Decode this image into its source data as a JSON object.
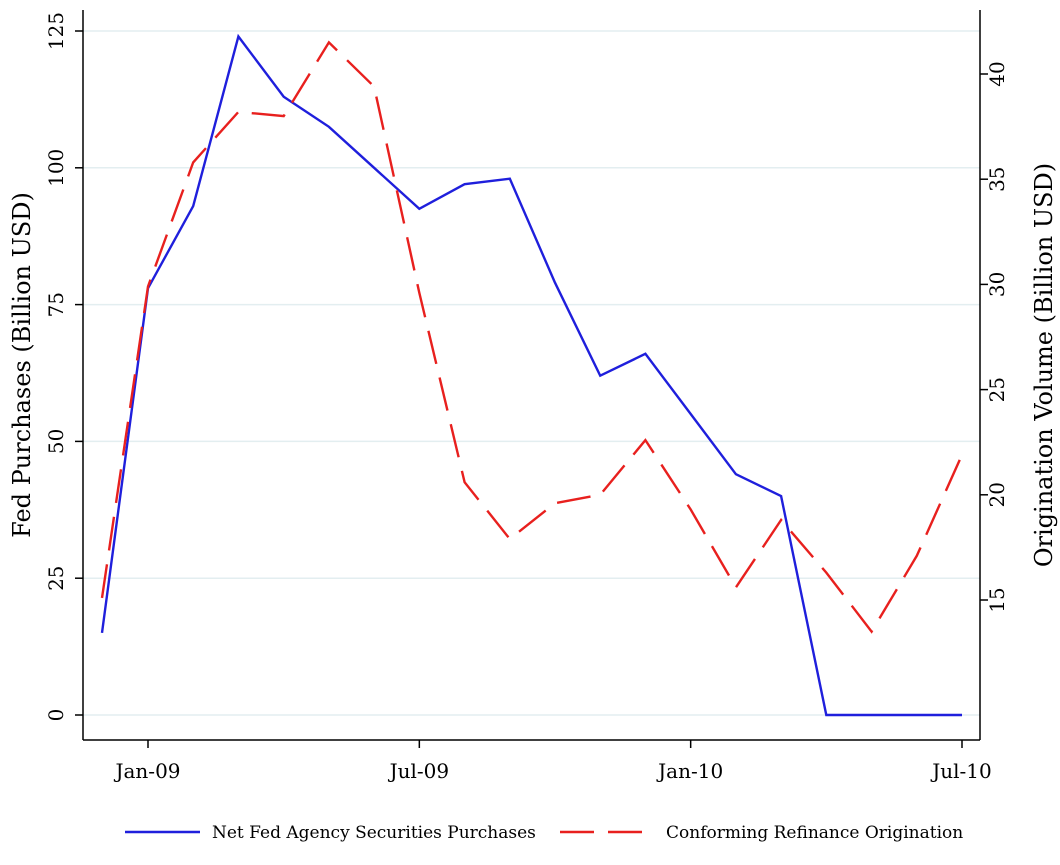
{
  "chart_data": {
    "type": "line",
    "title": "",
    "x": [
      "Dec-08",
      "Jan-09",
      "Feb-09",
      "Mar-09",
      "Apr-09",
      "May-09",
      "Jun-09",
      "Jul-09",
      "Aug-09",
      "Sep-09",
      "Oct-09",
      "Nov-09",
      "Dec-09",
      "Jan-10",
      "Feb-10",
      "Mar-10",
      "Apr-10",
      "May-10",
      "Jun-10",
      "Jul-10"
    ],
    "x_tick_labels": [
      "Jan-09",
      "Jul-09",
      "Jan-10",
      "Jul-10"
    ],
    "ylabel_left": "Fed Purchases (Billion USD)",
    "ylabel_right": "Origination Volume (Billion USD)",
    "ylim_left": [
      0,
      125
    ],
    "ylim_right": [
      10,
      42
    ],
    "yticks_left": [
      "0",
      "25",
      "50",
      "75",
      "100",
      "125"
    ],
    "yticks_right": [
      "15",
      "20",
      "25",
      "30",
      "35",
      "40"
    ],
    "grid": true,
    "legend_position": "bottom",
    "series": [
      {
        "name": "Net Fed Agency Securities Purchases",
        "axis": "left",
        "color": "#1f1fdc",
        "style": "solid",
        "values": [
          null,
          78,
          93,
          124,
          113,
          107.5,
          100,
          92.5,
          97,
          98,
          79,
          62,
          66,
          55,
          44,
          40,
          0,
          0,
          0,
          0
        ],
        "first_point": 15
      },
      {
        "name": "Conforming Refinance Origination",
        "axis": "right",
        "color": "#e8201e",
        "style": "dashed",
        "values": [
          null,
          29.9,
          35.8,
          38.2,
          38,
          41.5,
          39.4,
          29.6,
          20.6,
          17.9,
          19.6,
          20,
          22.6,
          19.3,
          15.6,
          18.8,
          16.3,
          13.5,
          17.1,
          21.9
        ],
        "first_point": 15.1
      }
    ]
  }
}
